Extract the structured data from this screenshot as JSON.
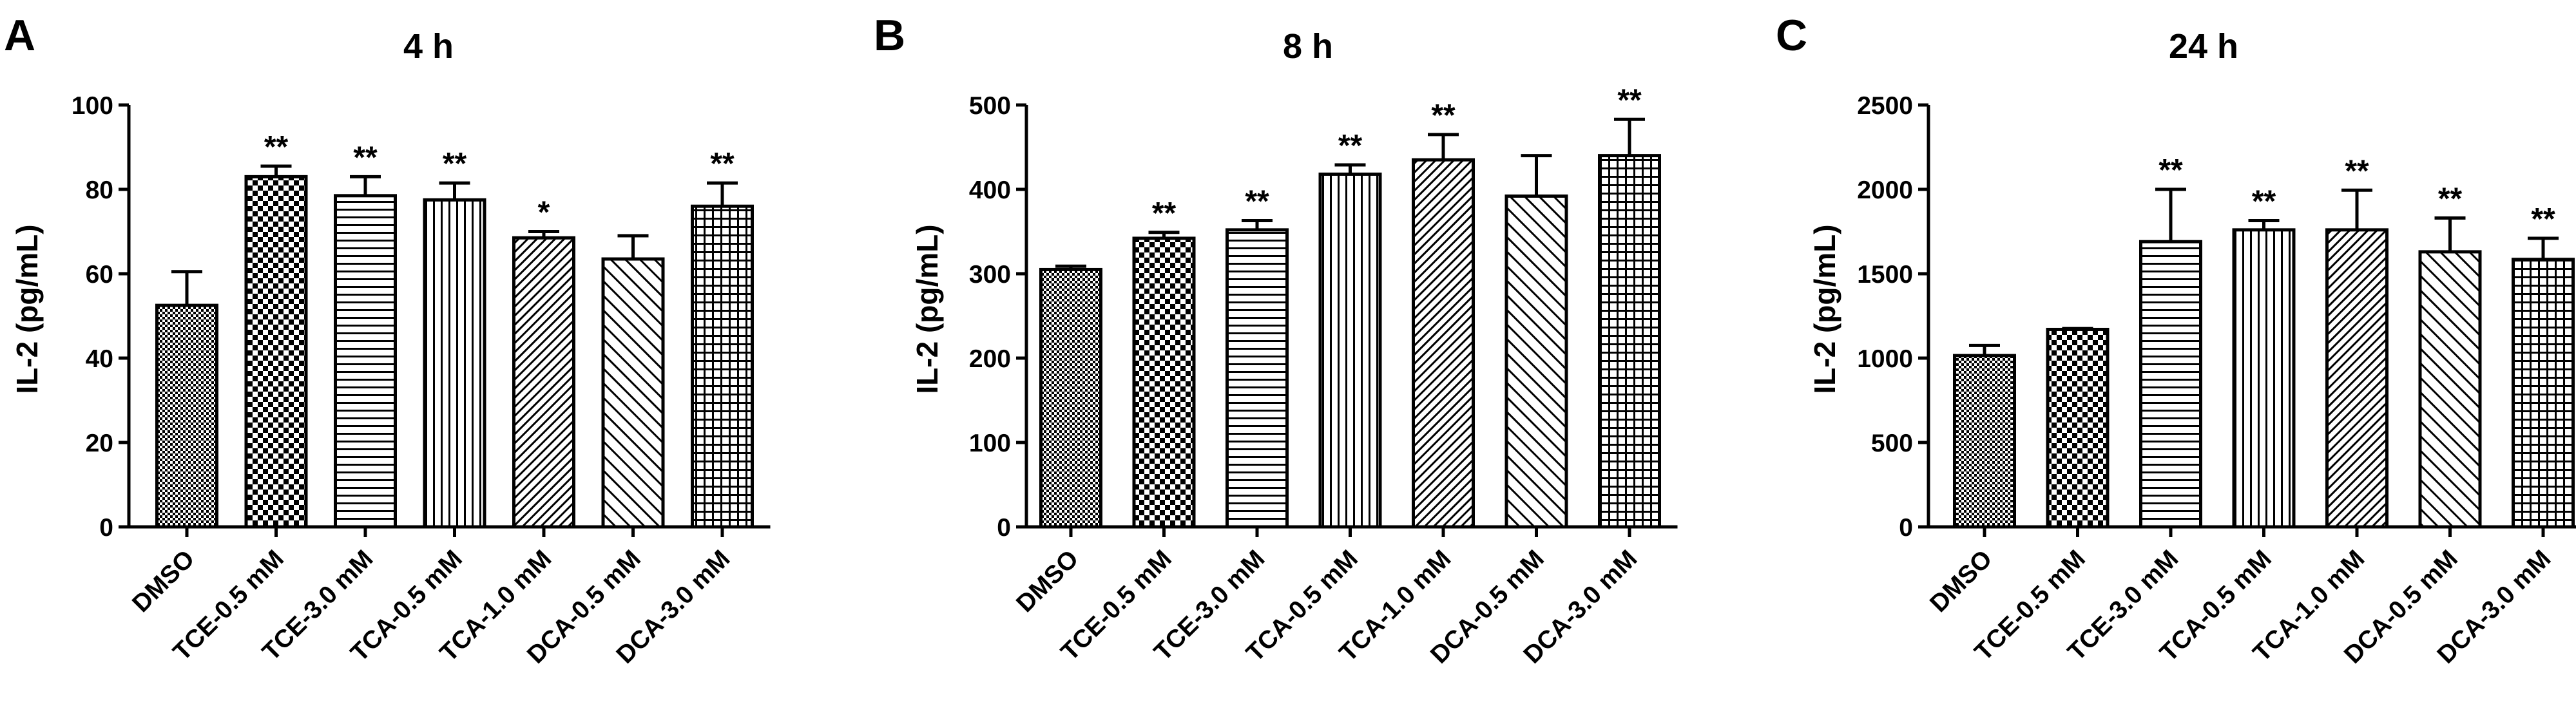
{
  "chart_data": [
    {
      "type": "bar",
      "panel": "A",
      "title": "4 h",
      "xlabel": "",
      "ylabel": "IL-2 (pg/mL)",
      "ylim": [
        0,
        100
      ],
      "yticks": [
        0,
        20,
        40,
        60,
        80,
        100
      ],
      "categories": [
        "DMSO",
        "TCE-0.5 mM",
        "TCE-3.0 mM",
        "TCA-0.5 mM",
        "TCA-1.0 mM",
        "DCA-0.5 mM",
        "DCA-3.0 mM"
      ],
      "values": [
        52.5,
        83,
        78.5,
        77.5,
        68.5,
        63.5,
        76
      ],
      "errors": [
        8,
        2.5,
        4.5,
        4,
        1.5,
        5.5,
        5.5
      ],
      "significance": [
        "",
        "**",
        "**",
        "**",
        "*",
        "",
        "**"
      ]
    },
    {
      "type": "bar",
      "panel": "B",
      "title": "8 h",
      "xlabel": "",
      "ylabel": "IL-2 (pg/mL)",
      "ylim": [
        0,
        500
      ],
      "yticks": [
        0,
        100,
        200,
        300,
        400,
        500
      ],
      "categories": [
        "DMSO",
        "TCE-0.5 mM",
        "TCE-3.0 mM",
        "TCA-0.5 mM",
        "TCA-1.0 mM",
        "DCA-0.5 mM",
        "DCA-3.0 mM"
      ],
      "values": [
        305,
        342,
        352,
        418,
        435,
        392,
        440
      ],
      "errors": [
        4,
        7,
        11,
        11,
        30,
        48,
        43
      ],
      "significance": [
        "",
        "**",
        "**",
        "**",
        "**",
        "",
        "**"
      ]
    },
    {
      "type": "bar",
      "panel": "C",
      "title": "24 h",
      "xlabel": "",
      "ylabel": "IL-2 (pg/mL)",
      "ylim": [
        0,
        2500
      ],
      "yticks": [
        0,
        500,
        1000,
        1500,
        2000,
        2500
      ],
      "categories": [
        "DMSO",
        "TCE-0.5 mM",
        "TCE-3.0 mM",
        "TCA-0.5 mM",
        "TCA-1.0 mM",
        "DCA-0.5 mM",
        "DCA-3.0 mM"
      ],
      "values": [
        1015,
        1170,
        1690,
        1760,
        1760,
        1630,
        1585
      ],
      "errors": [
        60,
        5,
        310,
        55,
        235,
        200,
        125
      ],
      "significance": [
        "",
        "",
        "**",
        "**",
        "**",
        "**",
        "**"
      ]
    }
  ]
}
